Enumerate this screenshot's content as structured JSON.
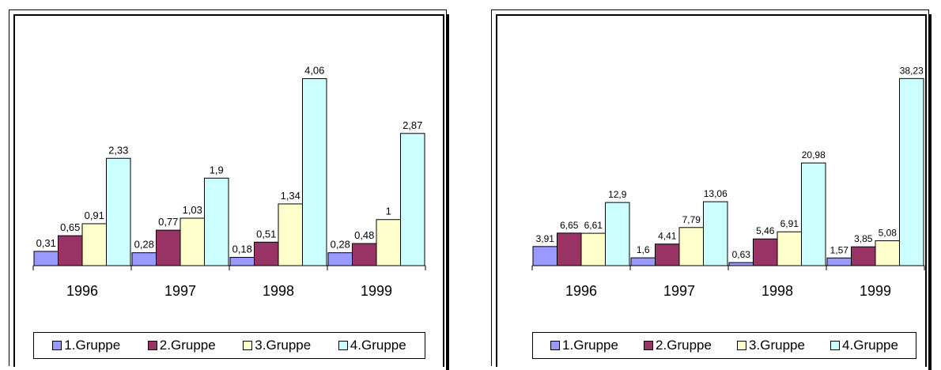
{
  "chart_data": [
    {
      "type": "bar",
      "categories": [
        "1996",
        "1997",
        "1998",
        "1999"
      ],
      "series": [
        {
          "name": "1.Gruppe",
          "values": [
            0.31,
            0.28,
            0.18,
            0.28
          ],
          "labels": [
            "0,31",
            "0,28",
            "0,18",
            "0,28"
          ],
          "color": "#9999FF"
        },
        {
          "name": "2.Gruppe",
          "values": [
            0.65,
            0.77,
            0.51,
            0.48
          ],
          "labels": [
            "0,65",
            "0,77",
            "0,51",
            "0,48"
          ],
          "color": "#993366"
        },
        {
          "name": "3.Gruppe",
          "values": [
            0.91,
            1.03,
            1.34,
            1
          ],
          "labels": [
            "0,91",
            "1,03",
            "1,34",
            "1"
          ],
          "color": "#FFFFCC"
        },
        {
          "name": "4.Gruppe",
          "values": [
            2.33,
            1.9,
            4.06,
            2.87
          ],
          "labels": [
            "2,33",
            "1,9",
            "4,06",
            "2,87"
          ],
          "color": "#CCFFFF"
        }
      ],
      "ylim": [
        0,
        4.6
      ],
      "legend": "bottom",
      "grid": false
    },
    {
      "type": "bar",
      "categories": [
        "1996",
        "1997",
        "1998",
        "1999"
      ],
      "series": [
        {
          "name": "1.Gruppe",
          "values": [
            3.91,
            1.6,
            0.63,
            1.57
          ],
          "labels": [
            "3,91",
            "1,6",
            "0,63",
            "1,57"
          ],
          "color": "#9999FF"
        },
        {
          "name": "2.Gruppe",
          "values": [
            6.65,
            4.41,
            5.46,
            3.85
          ],
          "labels": [
            "6,65",
            "4,41",
            "5,46",
            "3,85"
          ],
          "color": "#993366"
        },
        {
          "name": "3.Gruppe",
          "values": [
            6.61,
            7.79,
            6.91,
            5.08
          ],
          "labels": [
            "6,61",
            "7,79",
            "6,91",
            "5,08"
          ],
          "color": "#FFFFCC"
        },
        {
          "name": "4.Gruppe",
          "values": [
            12.9,
            13.06,
            20.98,
            38.23
          ],
          "labels": [
            "12,9",
            "13,06",
            "20,98",
            "38,23"
          ],
          "color": "#CCFFFF"
        }
      ],
      "ylim": [
        0,
        42
      ],
      "legend": "bottom",
      "grid": false
    }
  ]
}
